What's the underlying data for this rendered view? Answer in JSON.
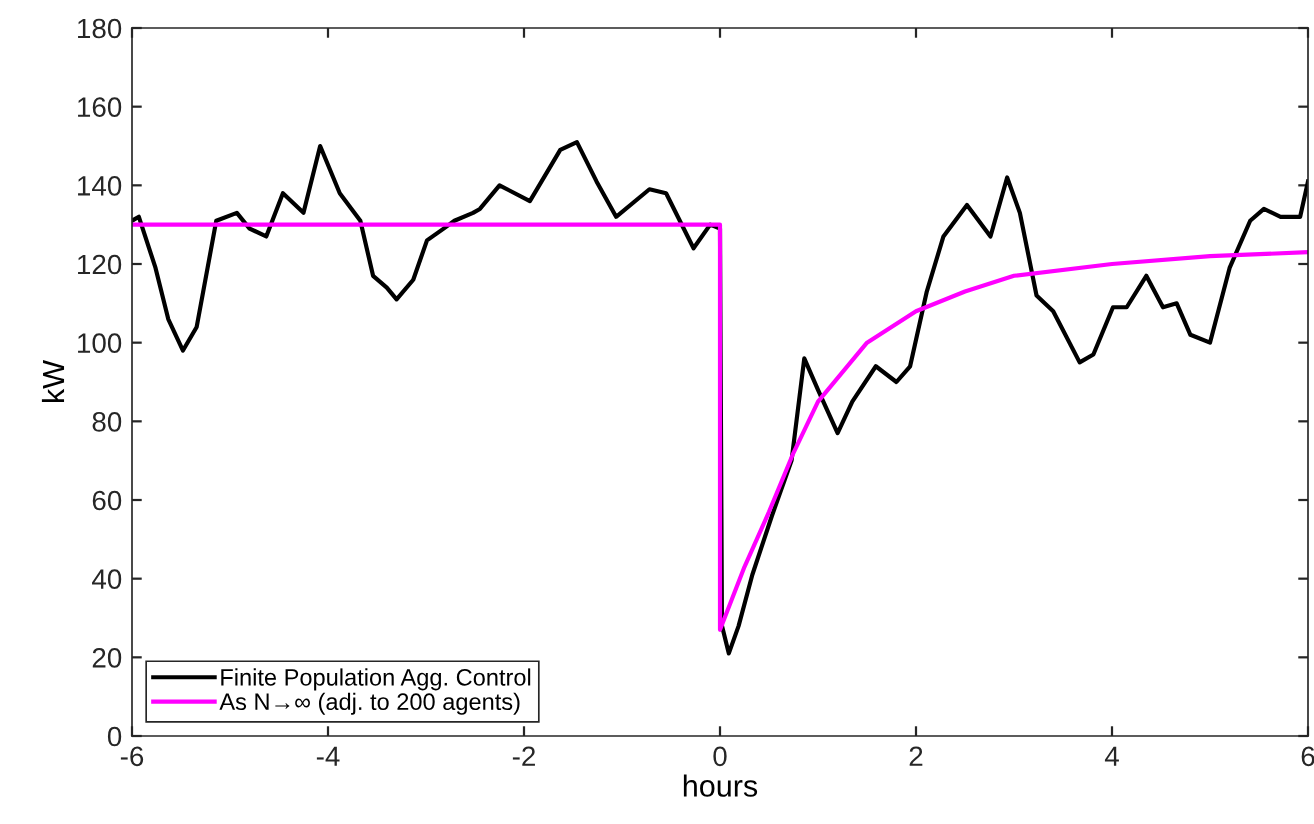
{
  "chart_data": {
    "type": "line",
    "xlabel": "hours",
    "ylabel": "kW",
    "xlim": [
      -6,
      6
    ],
    "xticks": [
      -6,
      -4,
      -2,
      0,
      2,
      4,
      6
    ],
    "ylim": [
      0,
      180
    ],
    "yticks": [
      0,
      20,
      40,
      60,
      80,
      100,
      120,
      140,
      160,
      180
    ],
    "grid": false,
    "legend": "bottom left",
    "line_style": "solid",
    "marker": "none",
    "series": [
      {
        "name": "Finite Population Agg. Control",
        "color": "#000000",
        "x": [
          -6.0,
          -5.93,
          -5.76,
          -5.63,
          -5.48,
          -5.34,
          -5.14,
          -4.93,
          -4.8,
          -4.63,
          -4.46,
          -4.25,
          -4.08,
          -3.88,
          -3.67,
          -3.54,
          -3.4,
          -3.3,
          -3.13,
          -2.99,
          -2.82,
          -2.71,
          -2.52,
          -2.45,
          -2.25,
          -1.94,
          -1.63,
          -1.46,
          -1.26,
          -1.06,
          -0.72,
          -0.55,
          -0.27,
          -0.1,
          0.0,
          0.02,
          0.09,
          0.19,
          0.33,
          0.53,
          0.73,
          0.86,
          1.0,
          1.2,
          1.35,
          1.59,
          1.8,
          1.94,
          2.11,
          2.28,
          2.52,
          2.76,
          2.93,
          3.06,
          3.23,
          3.4,
          3.67,
          3.81,
          4.01,
          4.15,
          4.35,
          4.52,
          4.66,
          4.8,
          5.0,
          5.2,
          5.41,
          5.55,
          5.72,
          5.92,
          6.0
        ],
        "values": [
          131,
          132,
          119,
          106,
          98,
          104,
          131,
          133,
          129,
          127,
          138,
          133,
          150,
          138,
          131,
          117,
          114,
          111,
          116,
          126,
          129,
          131,
          133,
          134,
          140,
          136,
          149,
          151,
          141,
          132,
          139,
          138,
          124,
          130,
          129,
          28,
          21,
          28,
          41,
          56,
          70,
          96,
          88,
          77,
          85,
          94,
          90,
          94,
          113,
          127,
          135,
          127,
          142,
          133,
          112,
          108,
          95,
          97,
          109,
          109,
          117,
          109,
          110,
          102,
          100,
          119,
          131,
          134,
          132,
          132,
          141
        ]
      },
      {
        "name": "As N→∞ (adj. to 200 agents)",
        "color": "#ff00ff",
        "x": [
          -6,
          0,
          0,
          0.25,
          0.5,
          0.75,
          1.0,
          1.5,
          2.0,
          2.5,
          3.0,
          4.0,
          5.0,
          6.0
        ],
        "values": [
          130,
          130,
          27,
          43,
          57,
          72,
          85,
          100,
          108,
          113,
          117,
          120,
          122,
          123
        ]
      }
    ]
  }
}
